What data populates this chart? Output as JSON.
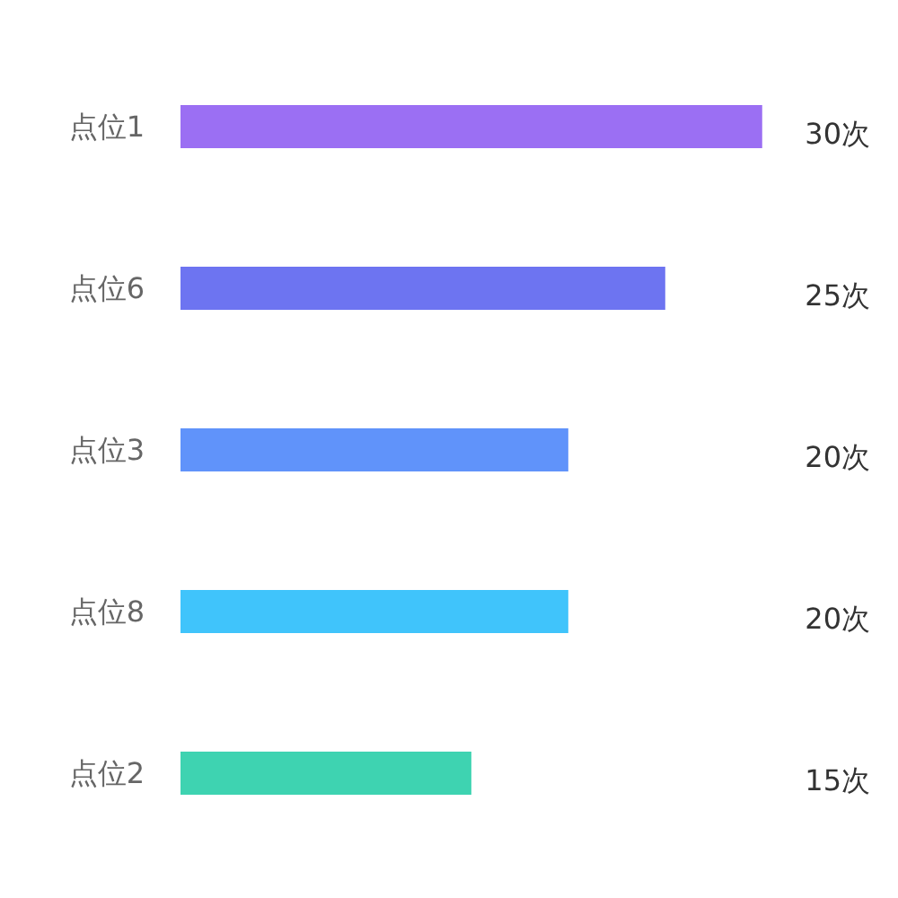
{
  "chart_data": {
    "type": "bar",
    "orientation": "horizontal",
    "categories": [
      "点位1",
      "点位6",
      "点位3",
      "点位8",
      "点位2"
    ],
    "values": [
      30,
      25,
      20,
      20,
      15
    ],
    "colors": [
      "#9b6ff3",
      "#6d74f1",
      "#6093fa",
      "#40c4fb",
      "#3ed3b1"
    ],
    "value_labels": [
      "30次",
      "25次",
      "20次",
      "20次",
      "15次"
    ],
    "grid": false
  }
}
